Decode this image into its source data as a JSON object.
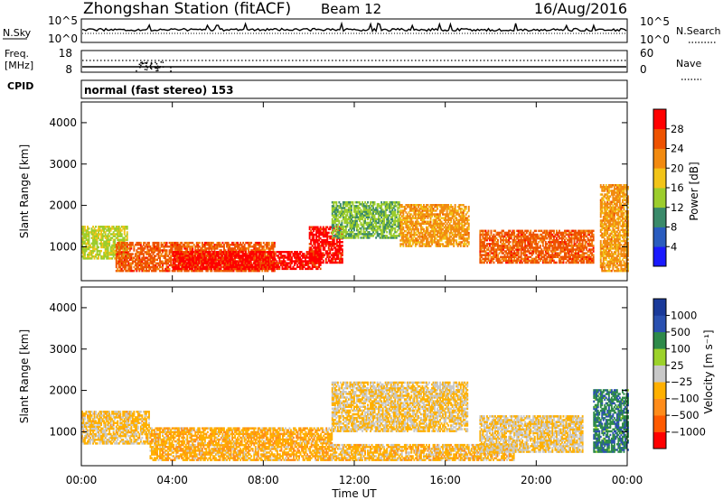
{
  "header": {
    "station": "Zhongshan Station (fitACF)",
    "beam": "Beam 12",
    "date": "16/Aug/2016"
  },
  "noise_panel": {
    "left_label": "N.Sky",
    "right_label": "N.Search",
    "left_ticks": [
      "10^5",
      "10^0"
    ],
    "right_ticks": [
      "10^5",
      "10^0"
    ]
  },
  "freq_panel": {
    "left_label_1": "Freq.",
    "left_label_2": "[MHz]",
    "left_ticks": [
      "18",
      "8"
    ],
    "right_label": "Nave",
    "right_ticks": [
      "60",
      "0"
    ]
  },
  "cpid": {
    "label": "CPID",
    "value": "normal (fast stereo) 153"
  },
  "x_axis": {
    "title": "Time UT",
    "ticks": [
      "00:00",
      "04:00",
      "08:00",
      "12:00",
      "16:00",
      "20:00",
      "00:00"
    ]
  },
  "colors": {
    "power_scale": [
      "#1a1aff",
      "#2a5cbf",
      "#3a8a6a",
      "#9ccd2c",
      "#f2c418",
      "#f28a10",
      "#ee5200",
      "#ff0000"
    ],
    "velocity_scale": [
      "#ff0000",
      "#ff5a00",
      "#ff8c1a",
      "#ffb000",
      "#c8c8c8",
      "#9cd22a",
      "#2e8a4a",
      "#2a50b0",
      "#1a3a9a"
    ]
  },
  "chart_data": [
    {
      "type": "heatmap",
      "title": "",
      "xlabel": "",
      "ylabel": "Slant Range [km]",
      "y_ticks": [
        "1000",
        "2000",
        "3000",
        "4000"
      ],
      "ylim": [
        180,
        4500
      ],
      "colorbar": {
        "label": "Power [dB]",
        "ticks": [
          "4",
          "8",
          "12",
          "16",
          "20",
          "24",
          "28"
        ],
        "range": [
          0,
          30
        ]
      },
      "regions": [
        {
          "t_start": 0.0,
          "t_end": 2.0,
          "range_low": 700,
          "range_high": 1500,
          "value": 14
        },
        {
          "t_start": 1.5,
          "t_end": 8.5,
          "range_low": 400,
          "range_high": 1100,
          "value": 24
        },
        {
          "t_start": 4.0,
          "t_end": 10.5,
          "range_low": 450,
          "range_high": 900,
          "value": 28
        },
        {
          "t_start": 10.0,
          "t_end": 11.5,
          "range_low": 600,
          "range_high": 1500,
          "value": 28
        },
        {
          "t_start": 11.0,
          "t_end": 14.0,
          "range_low": 1200,
          "range_high": 2100,
          "value": 12
        },
        {
          "t_start": 14.0,
          "t_end": 17.0,
          "range_low": 1000,
          "range_high": 2000,
          "value": 20
        },
        {
          "t_start": 17.5,
          "t_end": 22.5,
          "range_low": 600,
          "range_high": 1400,
          "value": 24
        },
        {
          "t_start": 22.8,
          "t_end": 24.0,
          "range_low": 400,
          "range_high": 2500,
          "value": 20
        }
      ]
    },
    {
      "type": "heatmap",
      "title": "",
      "xlabel": "Time UT",
      "ylabel": "Slant Range [km]",
      "y_ticks": [
        "1000",
        "2000",
        "3000",
        "4000"
      ],
      "ylim": [
        180,
        4500
      ],
      "colorbar": {
        "label": "Velocity [m s⁻¹]",
        "ticks": [
          "1000",
          "500",
          "100",
          "25",
          "−25",
          "−100",
          "−500",
          "−1000"
        ],
        "range": [
          -1200,
          1200
        ]
      },
      "regions": [
        {
          "t_start": 0.0,
          "t_end": 3.0,
          "range_low": 700,
          "range_high": 1500,
          "value": -200
        },
        {
          "t_start": 3.0,
          "t_end": 11.0,
          "range_low": 300,
          "range_high": 1100,
          "value": -300
        },
        {
          "t_start": 11.0,
          "t_end": 17.0,
          "range_low": 1000,
          "range_high": 2200,
          "value": -150
        },
        {
          "t_start": 11.0,
          "t_end": 19.0,
          "range_low": 300,
          "range_high": 700,
          "value": -250
        },
        {
          "t_start": 17.5,
          "t_end": 22.0,
          "range_low": 500,
          "range_high": 1400,
          "value": -120
        },
        {
          "t_start": 22.5,
          "t_end": 24.0,
          "range_low": 500,
          "range_high": 2000,
          "value": 600
        }
      ]
    }
  ]
}
